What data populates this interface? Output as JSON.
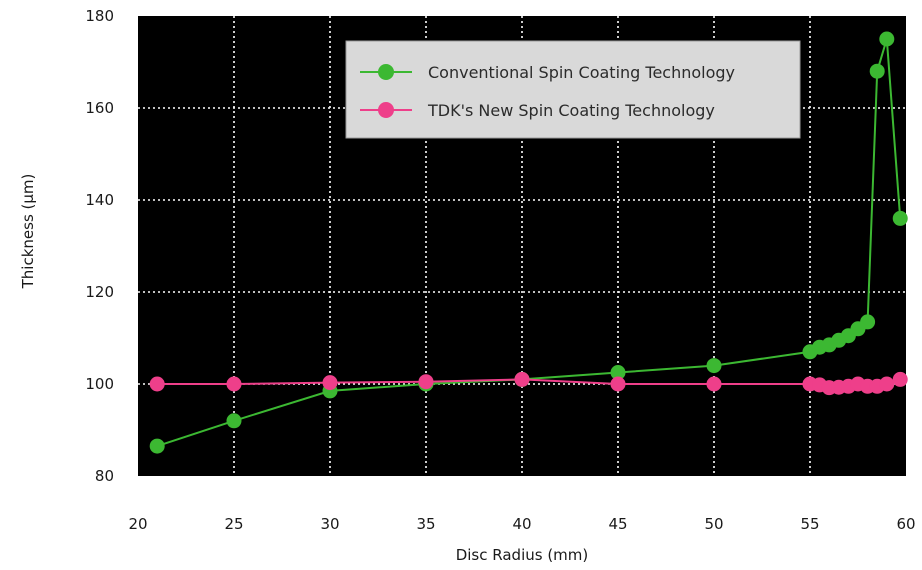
{
  "chart_data": {
    "type": "line",
    "title": "",
    "xlabel": "Disc Radius (mm)",
    "ylabel": "Thickness (µm)",
    "xlim": [
      20,
      60
    ],
    "ylim": [
      80,
      180
    ],
    "x_ticks": [
      20,
      25,
      30,
      35,
      40,
      45,
      50,
      55,
      60
    ],
    "y_ticks": [
      80,
      100,
      120,
      140,
      160,
      180
    ],
    "grid": true,
    "legend_position": "top-right",
    "plot_background": "#000000",
    "series": [
      {
        "name": "Conventional Spin Coating Technology",
        "color": "#3cb832",
        "x": [
          21,
          25,
          30,
          35,
          40,
          45,
          50,
          55,
          55.5,
          56,
          56.5,
          57,
          57.5,
          58,
          58.5,
          59,
          59.7
        ],
        "y": [
          86.5,
          92,
          98.5,
          100,
          101,
          102.5,
          104,
          107,
          108,
          108.5,
          109.5,
          110.5,
          112,
          113.5,
          168,
          175,
          136
        ]
      },
      {
        "name": "TDK's New Spin Coating Technology",
        "color": "#ee3f8a",
        "x": [
          21,
          25,
          30,
          35,
          40,
          45,
          50,
          55,
          55.5,
          56,
          56.5,
          57,
          57.5,
          58,
          58.5,
          59,
          59.7
        ],
        "y": [
          100,
          100,
          100.3,
          100.5,
          101,
          100,
          100,
          100,
          99.8,
          99.2,
          99.3,
          99.5,
          100,
          99.5,
          99.5,
          100,
          101
        ]
      }
    ]
  }
}
